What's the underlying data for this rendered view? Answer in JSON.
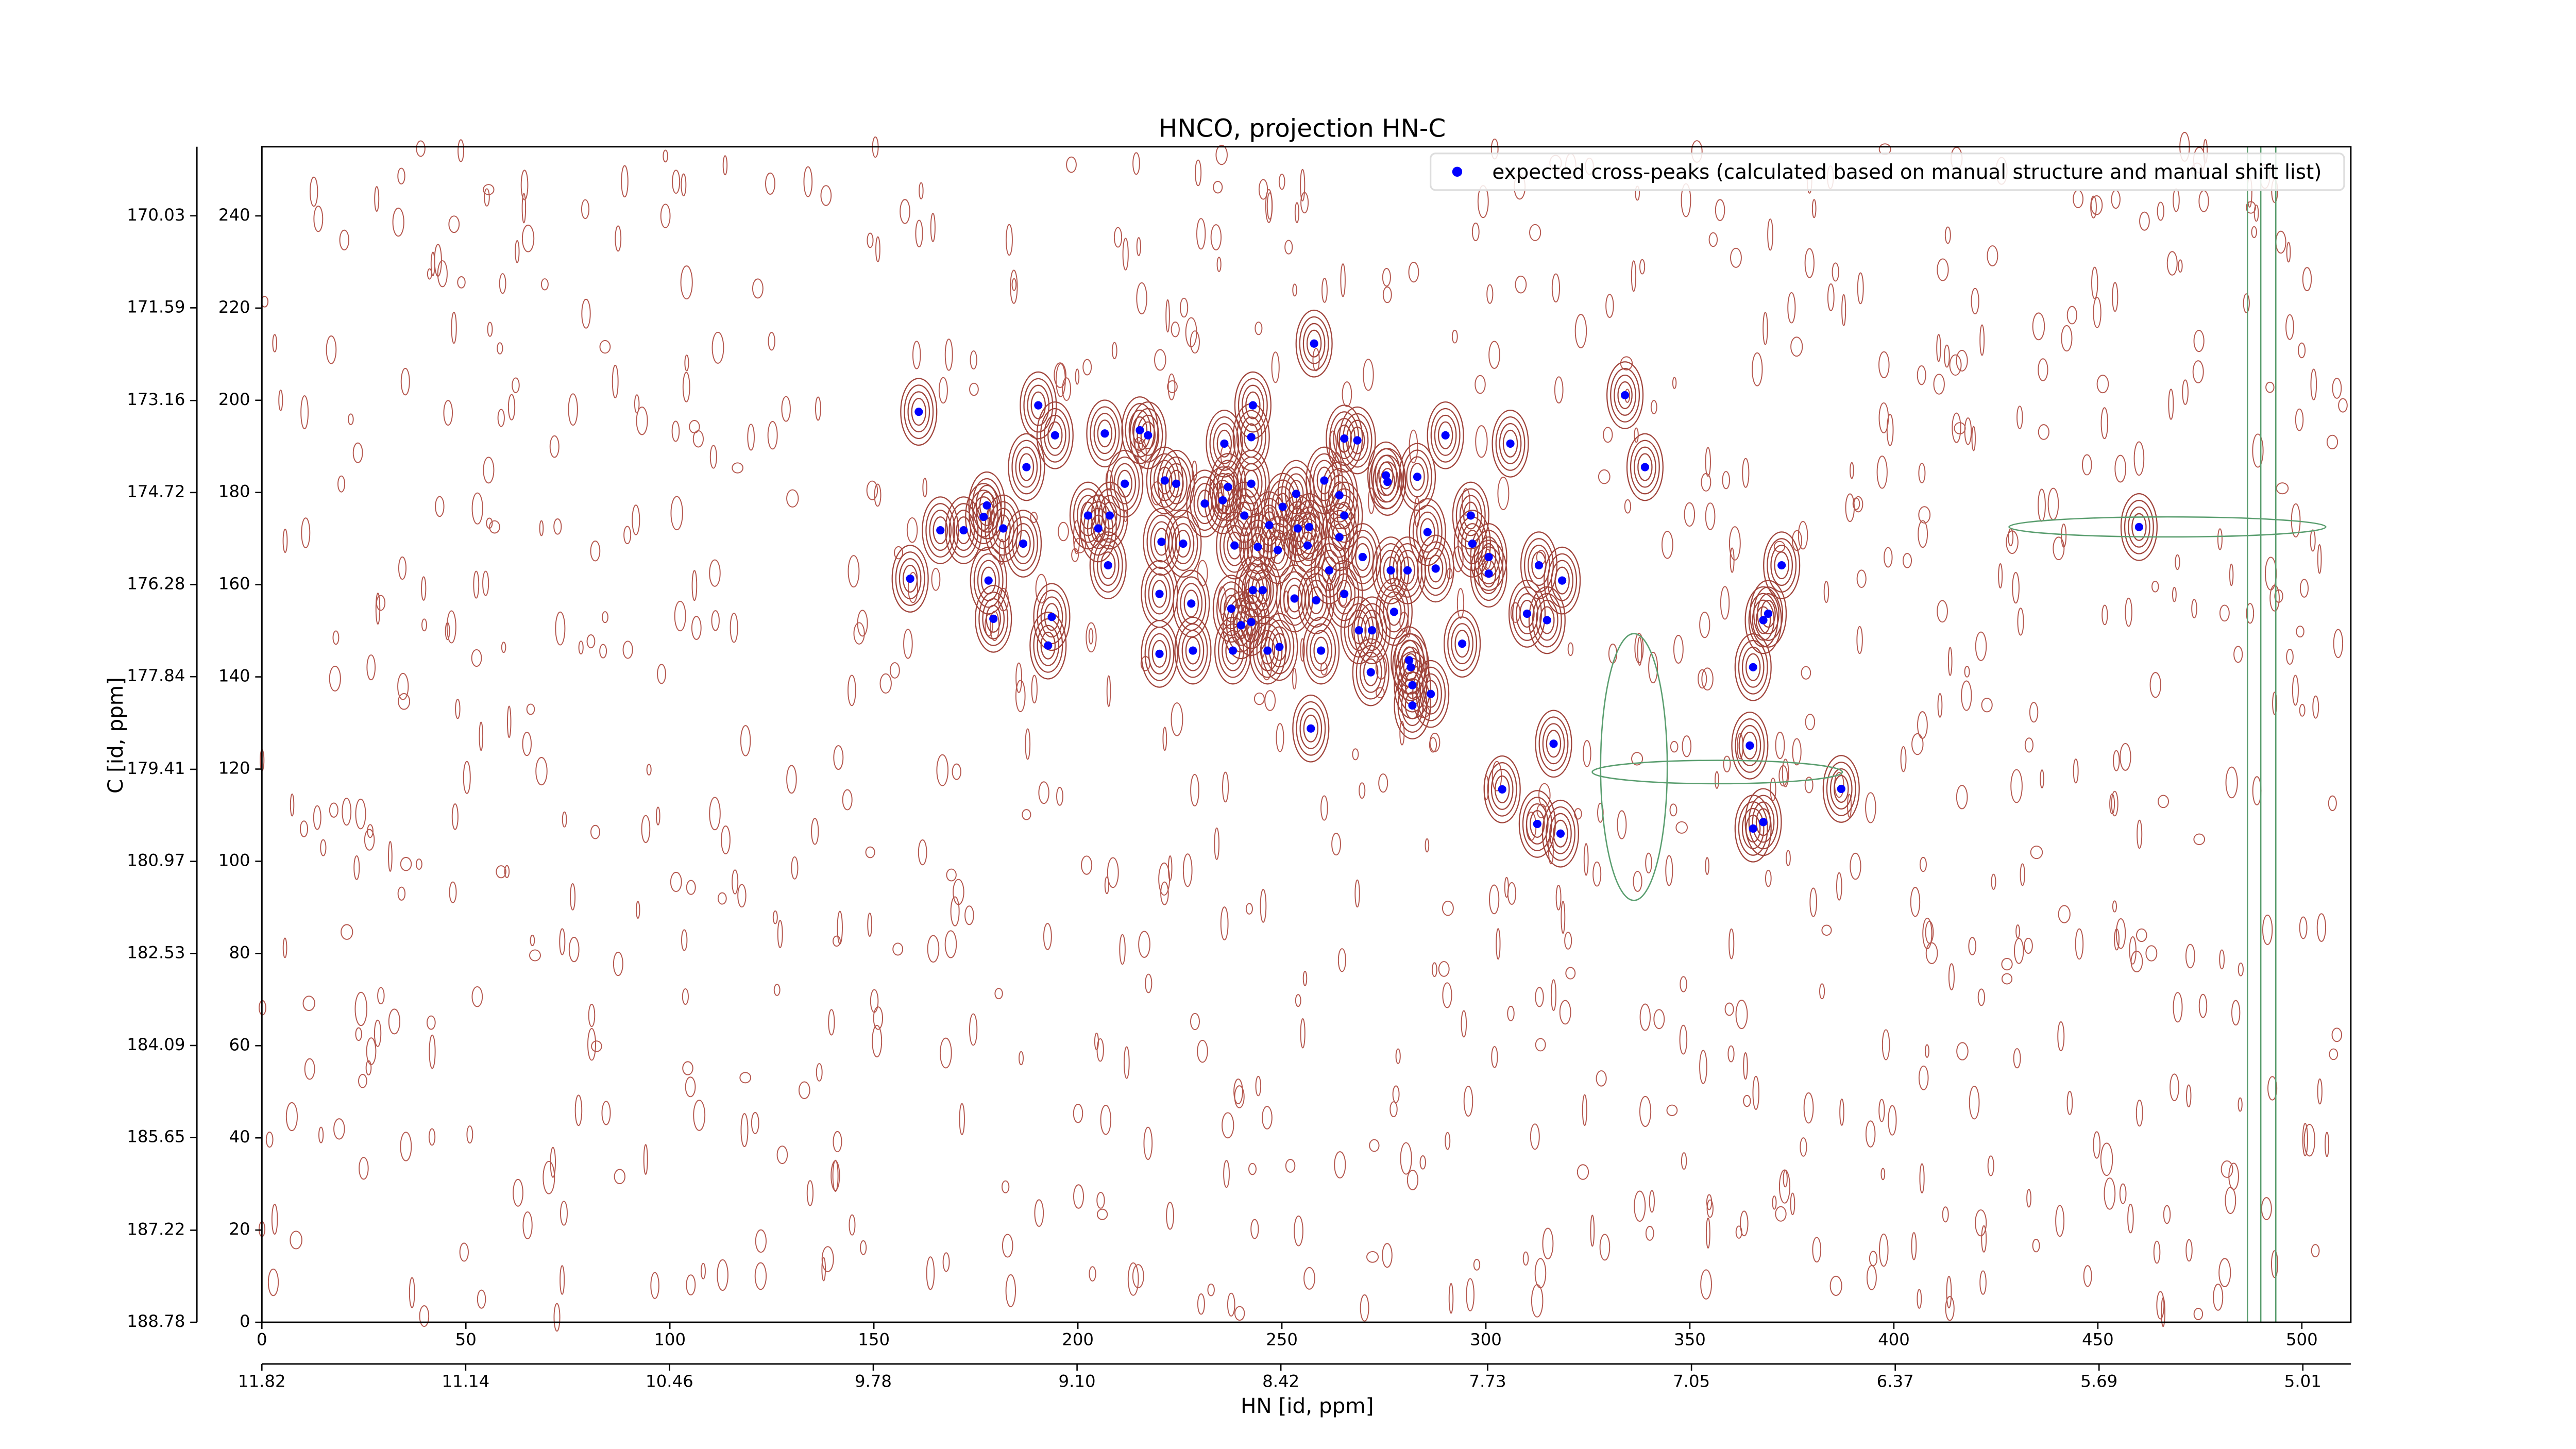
{
  "chart_data": {
    "type": "scatter",
    "title": "HNCO, projection HN-C",
    "x_label": "HN [id, ppm]",
    "y_label": "C [id, ppm]",
    "xlim": [
      0,
      512
    ],
    "xticks": [
      0,
      50,
      100,
      150,
      200,
      250,
      300,
      350,
      400,
      450,
      500
    ],
    "ylim": [
      0,
      255
    ],
    "yticks": [
      0,
      20,
      40,
      60,
      80,
      100,
      120,
      140,
      160,
      180,
      200,
      220,
      240
    ],
    "x2lim": [
      11.82,
      4.85
    ],
    "x2ticks": [
      11.82,
      11.14,
      10.46,
      9.78,
      {
        "value": 9.1,
        "label": "9.10"
      },
      8.42,
      7.73,
      7.05,
      6.37,
      5.69,
      5.01
    ],
    "y2lim": [
      188.78,
      168.86
    ],
    "y2ticks": [
      188.78,
      187.22,
      185.65,
      184.09,
      182.53,
      180.97,
      179.41,
      177.84,
      176.28,
      174.72,
      173.16,
      171.59,
      170.03
    ],
    "legend": "upper right",
    "series": [
      {
        "name": "expected cross-peaks (calculated based on manual structure and manual shift list)",
        "color": "#0000ff",
        "x": [
          161.0,
          158.9,
          166.3,
          172.0,
          176.9,
          177.7,
          178.1,
          179.3,
          181.7,
          186.6,
          187.4,
          190.3,
          193.6,
          194.4,
          192.7,
          202.5,
          205.0,
          206.6,
          207.8,
          207.4,
          211.5,
          215.2,
          217.2,
          221.3,
          224.1,
          220.5,
          220.0,
          220.0,
          225.8,
          227.8,
          228.2,
          231.1,
          235.5,
          236.8,
          237.6,
          238.0,
          235.9,
          242.9,
          242.5,
          242.5,
          240.8,
          238.4,
          240.0,
          242.9,
          242.5,
          245.3,
          246.5,
          249.4,
          244.1,
          246.9,
          249.0,
          250.2,
          253.5,
          253.9,
          253.1,
          256.3,
          256.7,
          257.9,
          258.4,
          257.1,
          259.6,
          260.4,
          261.6,
          264.1,
          265.3,
          264.1,
          265.3,
          265.3,
          268.5,
          268.9,
          269.8,
          271.8,
          272.1,
          275.5,
          276.7,
          280.8,
          275.9,
          277.5,
          281.2,
          282.0,
          282.0,
          281.6,
          283.2,
          285.7,
          286.5,
          287.7,
          290.1,
          294.2,
          296.3,
          296.7,
          300.7,
          300.7,
          306.0,
          310.1,
          313.0,
          315.0,
          318.7,
          304.0,
          312.6,
          316.6,
          318.3,
          334.1,
          339.0,
          364.7,
          365.5,
          368.0,
          369.2,
          372.5,
          365.5,
          368.0,
          387.1,
          460.1
        ],
        "values": [
          197.5,
          161.3,
          171.8,
          171.8,
          174.7,
          177.2,
          160.9,
          152.6,
          172.2,
          168.9,
          185.5,
          198.9,
          153.0,
          192.4,
          146.8,
          175.0,
          172.2,
          192.8,
          175.0,
          164.2,
          181.9,
          193.5,
          192.4,
          182.6,
          181.9,
          169.3,
          158.0,
          145.0,
          168.9,
          155.9,
          145.7,
          177.6,
          178.3,
          181.2,
          154.8,
          145.7,
          190.6,
          198.9,
          192.0,
          181.9,
          175.0,
          168.5,
          151.2,
          158.8,
          151.9,
          158.8,
          145.7,
          146.5,
          168.2,
          172.9,
          167.5,
          176.9,
          179.7,
          172.2,
          157.0,
          168.5,
          172.5,
          212.3,
          156.6,
          128.8,
          145.7,
          182.6,
          163.1,
          179.4,
          175.0,
          170.3,
          191.7,
          158.0,
          191.3,
          150.1,
          166.0,
          141.0,
          150.1,
          183.7,
          163.1,
          163.1,
          182.3,
          154.1,
          143.6,
          138.2,
          133.8,
          142.1,
          183.4,
          171.4,
          136.3,
          163.5,
          192.4,
          147.2,
          175.0,
          168.9,
          166.0,
          162.4,
          190.6,
          153.7,
          164.2,
          152.3,
          160.9,
          115.6,
          108.1,
          125.5,
          106.0,
          201.1,
          185.5,
          125.1,
          142.1,
          152.3,
          153.7,
          164.2,
          107.1,
          108.5,
          115.7,
          172.5
        ]
      }
    ]
  }
}
